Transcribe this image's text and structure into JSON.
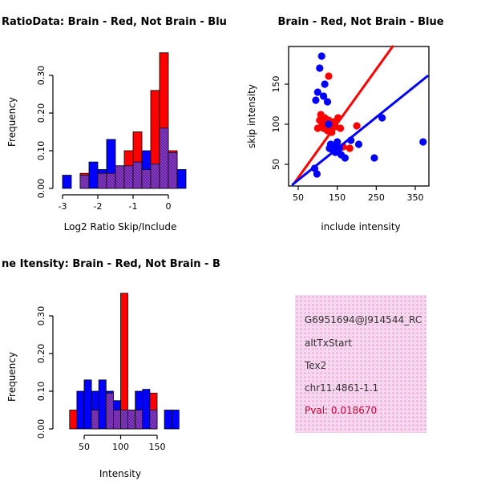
{
  "colors": {
    "red": "#FF0000",
    "blue": "#0000FF",
    "overlap": "#8B3FC8",
    "overlap_hatch": "#46107E",
    "info_bg": "#F7D9EF",
    "pval": "#CC0033"
  },
  "panels": {
    "hist_ratio": {
      "title": "RatioData: Brain - Red, Not Brain - Blu",
      "ylabel": "Frequency",
      "xlabel": "Log2 Ratio Skip/Include"
    },
    "scatter": {
      "title": "Brain - Red, Not Brain - Blue",
      "ylabel": "skip intensity",
      "xlabel": "include intensity"
    },
    "hist_intensity": {
      "title": "ne Itensity: Brain - Red, Not Brain - B",
      "ylabel": "Frequency",
      "xlabel": "Intensity"
    },
    "info": {
      "lines": [
        "G6951694@J914544_RC",
        "altTxStart",
        "Tex2",
        "chr11.4861-1.1",
        "Pval: 0.018670"
      ]
    }
  },
  "chart_data": [
    {
      "type": "bar",
      "subtype": "histogram",
      "panel": "top-left",
      "title": "RatioData: Brain - Red, Not Brain - Blu",
      "xlabel": "Log2 Ratio Skip/Include",
      "ylabel": "Frequency",
      "xlim": [
        -3.2,
        0.6
      ],
      "ylim": [
        0,
        0.37
      ],
      "bin_width": 0.25,
      "bin_starts": [
        -3,
        -2.75,
        -2.5,
        -2.25,
        -2,
        -1.75,
        -1.5,
        -1.25,
        -1,
        -0.75,
        -0.5,
        -0.25,
        0,
        0.25
      ],
      "series": [
        {
          "name": "Brain",
          "color": "#FF0000",
          "values": [
            0,
            0,
            0.04,
            0,
            0.04,
            0.04,
            0.06,
            0.1,
            0.15,
            0.05,
            0.26,
            0.36,
            0.1,
            0
          ]
        },
        {
          "name": "Not Brain",
          "color": "#0000FF",
          "values": [
            0.035,
            0,
            0.035,
            0.07,
            0.05,
            0.13,
            0.06,
            0.06,
            0.07,
            0.1,
            0.065,
            0.16,
            0.095,
            0.05
          ]
        }
      ],
      "xticks": [
        -3,
        -2,
        -1,
        0
      ],
      "xtick_labels": [
        "-3",
        "-2",
        "-1",
        "0"
      ],
      "yticks": [
        0,
        0.1,
        0.2,
        0.3
      ],
      "ytick_labels": [
        "0.00",
        "0.10",
        "0.20",
        "0.30"
      ],
      "grid": false
    },
    {
      "type": "scatter",
      "panel": "top-right",
      "title": "Brain - Red, Not Brain - Blue",
      "xlabel": "include intensity",
      "ylabel": "skip intensity",
      "xlim": [
        30,
        390
      ],
      "ylim": [
        20,
        200
      ],
      "xticks": [
        50,
        150,
        250,
        350
      ],
      "xtick_labels": [
        "50",
        "150",
        "250",
        "350"
      ],
      "yticks": [
        50,
        100,
        150
      ],
      "ytick_labels": [
        "50",
        "100",
        "150"
      ],
      "series": [
        {
          "name": "Brain",
          "color": "#FF0000",
          "points": [
            [
              100,
              95
            ],
            [
              105,
              105
            ],
            [
              108,
              112
            ],
            [
              112,
              100
            ],
            [
              115,
              95
            ],
            [
              118,
              108
            ],
            [
              122,
              100
            ],
            [
              125,
              92
            ],
            [
              128,
              105
            ],
            [
              132,
              98
            ],
            [
              136,
              90
            ],
            [
              140,
              103
            ],
            [
              145,
              97
            ],
            [
              152,
              108
            ],
            [
              158,
              95
            ],
            [
              128,
              160
            ],
            [
              165,
              72
            ],
            [
              182,
              70
            ],
            [
              200,
              98
            ]
          ]
        },
        {
          "name": "Not Brain",
          "color": "#0000FF",
          "points": [
            [
              92,
              45
            ],
            [
              98,
              38
            ],
            [
              95,
              130
            ],
            [
              100,
              140
            ],
            [
              105,
              170
            ],
            [
              110,
              185
            ],
            [
              115,
              135
            ],
            [
              118,
              150
            ],
            [
              125,
              128
            ],
            [
              128,
              100
            ],
            [
              130,
              70
            ],
            [
              133,
              75
            ],
            [
              138,
              68
            ],
            [
              142,
              72
            ],
            [
              145,
              65
            ],
            [
              150,
              78
            ],
            [
              155,
              70
            ],
            [
              160,
              62
            ],
            [
              170,
              58
            ],
            [
              185,
              80
            ],
            [
              205,
              75
            ],
            [
              245,
              58
            ],
            [
              265,
              108
            ],
            [
              370,
              78
            ]
          ]
        }
      ],
      "fit_lines": [
        {
          "name": "Brain fit",
          "color": "#FF0000",
          "x1": 42,
          "y1": 28,
          "x2": 292,
          "y2": 197
        },
        {
          "name": "Not Brain fit",
          "color": "#0000FF",
          "x1": 36,
          "y1": 25,
          "x2": 381,
          "y2": 160
        }
      ],
      "grid": false
    },
    {
      "type": "bar",
      "subtype": "histogram",
      "panel": "bottom-left",
      "title": "ne Itensity: Brain - Red, Not Brain - B",
      "xlabel": "Intensity",
      "ylabel": "Frequency",
      "xlim": [
        20,
        180
      ],
      "ylim": [
        0,
        0.37
      ],
      "bin_width": 10,
      "bin_starts": [
        30,
        40,
        50,
        60,
        70,
        80,
        90,
        100,
        110,
        120,
        130,
        140,
        150,
        160,
        170
      ],
      "series": [
        {
          "name": "Brain",
          "color": "#FF0000",
          "values": [
            0.05,
            0,
            0,
            0.05,
            0,
            0.095,
            0.05,
            0.36,
            0.05,
            0.05,
            0,
            0.095,
            0,
            0,
            0
          ]
        },
        {
          "name": "Not Brain",
          "color": "#0000FF",
          "values": [
            0,
            0.1,
            0.13,
            0.1,
            0.13,
            0.1,
            0.075,
            0.05,
            0.05,
            0.1,
            0.105,
            0.05,
            0,
            0.05,
            0.05
          ]
        }
      ],
      "xticks": [
        50,
        100,
        150
      ],
      "xtick_labels": [
        "50",
        "100",
        "150"
      ],
      "yticks": [
        0,
        0.1,
        0.2,
        0.3
      ],
      "ytick_labels": [
        "0.00",
        "0.10",
        "0.20",
        "0.30"
      ],
      "grid": false
    }
  ]
}
